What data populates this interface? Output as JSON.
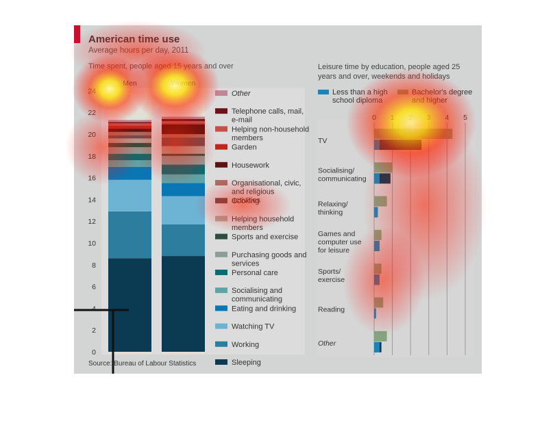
{
  "header": {
    "title": "American time use",
    "subtitle": "Average hours per day, 2011",
    "left_heading": "Time spent, people aged 15 years and over",
    "right_heading": "Leisure time by education, people aged 25 years and over, weekends and holidays",
    "source": "Source: Bureau of Labour Statistics"
  },
  "chart_data": [
    {
      "type": "bar",
      "stacked": true,
      "title": "Time spent, people aged 15 years and over",
      "categories": [
        "Men",
        "Women"
      ],
      "ylim": [
        0,
        24
      ],
      "yticks": [
        0,
        2,
        4,
        6,
        8,
        10,
        12,
        14,
        16,
        18,
        20,
        22,
        24
      ],
      "grid": false,
      "legend_position": "right",
      "series": [
        {
          "name": "Sleeping",
          "color": "#0b3b52",
          "values": [
            8.6,
            8.8
          ]
        },
        {
          "name": "Working",
          "color": "#2d7e9e",
          "values": [
            4.3,
            2.9
          ]
        },
        {
          "name": "Watching TV",
          "color": "#6db3d4",
          "values": [
            2.9,
            2.6
          ]
        },
        {
          "name": "Eating and drinking",
          "color": "#0a76b4",
          "values": [
            1.2,
            1.2
          ]
        },
        {
          "name": "Socialising and communicating",
          "color": "#5ea3a5",
          "values": [
            0.6,
            0.8
          ]
        },
        {
          "name": "Personal care",
          "color": "#0b6b70",
          "values": [
            0.6,
            0.9
          ]
        },
        {
          "name": "Purchasing goods and services",
          "color": "#8d9e98",
          "values": [
            0.6,
            0.8
          ]
        },
        {
          "name": "Sports and exercise",
          "color": "#2f4d3e",
          "values": [
            0.4,
            0.2
          ]
        },
        {
          "name": "Helping household members",
          "color": "#b1a196",
          "values": [
            0.4,
            0.7
          ]
        },
        {
          "name": "Cooking",
          "color": "#6d4e4d",
          "values": [
            0.3,
            0.8
          ]
        },
        {
          "name": "Organisational, civic, and religious activities",
          "color": "#a86f62",
          "values": [
            0.3,
            0.3
          ]
        },
        {
          "name": "Housework",
          "color": "#5a1510",
          "values": [
            0.3,
            0.9
          ]
        },
        {
          "name": "Garden",
          "color": "#c1251c",
          "values": [
            0.3,
            0.1
          ]
        },
        {
          "name": "Helping non-household members",
          "color": "#c4504a",
          "values": [
            0.2,
            0.2
          ]
        },
        {
          "name": "Telephone calls, mail, e-mail",
          "color": "#6f1118",
          "values": [
            0.1,
            0.2
          ]
        },
        {
          "name": "Other",
          "color": "#c28694",
          "values": [
            0.2,
            0.2
          ]
        }
      ]
    },
    {
      "type": "bar",
      "orientation": "horizontal",
      "title": "Leisure time by education, people aged 25 years and over, weekends and holidays",
      "categories": [
        "TV",
        "Socialising/ communicating",
        "Relaxing/ thinking",
        "Games and computer use for leisure",
        "Sports/ exercise",
        "Reading",
        "Other"
      ],
      "xlim": [
        0,
        5
      ],
      "xticks": [
        0,
        1,
        2,
        3,
        4,
        5
      ],
      "grid": true,
      "legend_position": "top",
      "series": [
        {
          "name": "Less than a high school diploma",
          "color": "#1b85b8",
          "values": [
            2.6,
            0.9,
            0.2,
            0.3,
            0.3,
            0.1,
            0.4
          ]
        },
        {
          "name": "Bachelor's degree and higher",
          "color": "#7fa07a",
          "values": [
            4.3,
            1.0,
            0.7,
            0.4,
            0.4,
            0.5,
            0.7
          ]
        }
      ]
    }
  ],
  "legend": {
    "items": [
      {
        "label": "Other",
        "italic": true
      },
      {
        "label": "Telephone calls, mail, e-mail"
      },
      {
        "label": "Helping non-household members"
      },
      {
        "label": "Garden"
      },
      {
        "label": "Housework"
      },
      {
        "label": "Organisational, civic, and religious activities"
      },
      {
        "label": "Cooking"
      },
      {
        "label": "Helping household members"
      },
      {
        "label": "Sports and exercise"
      },
      {
        "label": "Purchasing goods and services"
      },
      {
        "label": "Personal care"
      },
      {
        "label": "Socialising and communicating"
      },
      {
        "label": "Eating and drinking"
      },
      {
        "label": "Watching TV"
      },
      {
        "label": "Working"
      },
      {
        "label": "Sleeping"
      }
    ]
  },
  "colors": {
    "accent_red": "#c8102e",
    "panel_bg": "#d3d4d4",
    "men_bottom_series_1": "#0b3b52",
    "less_than_high_school": "#1b85b8",
    "bachelors": "#7fa07a"
  }
}
